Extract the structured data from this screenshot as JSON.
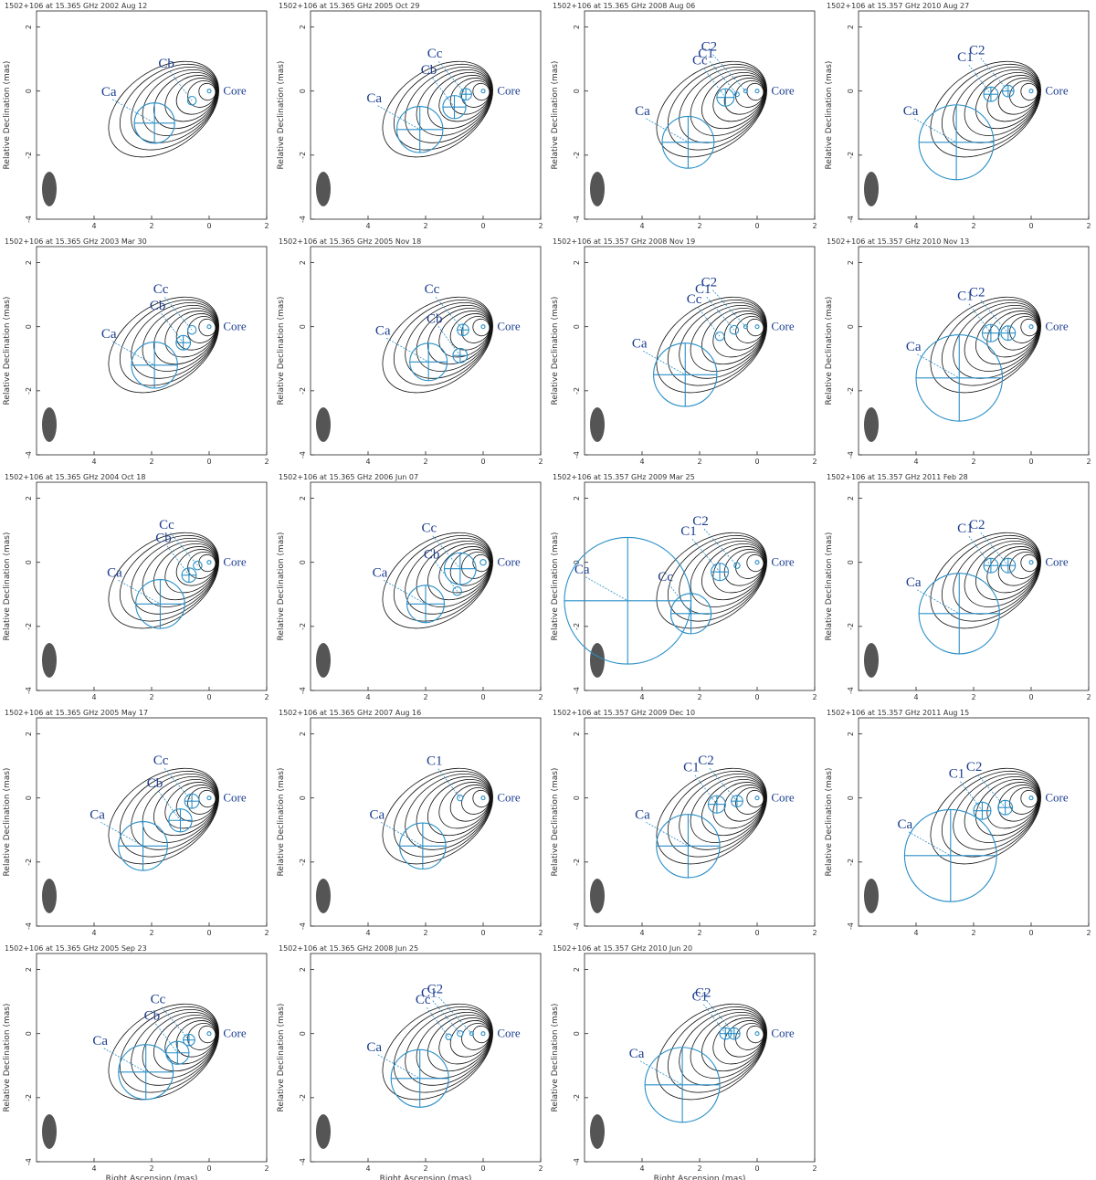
{
  "colors": {
    "contour": "#111111",
    "negative_contour": "#d62020",
    "model_component": "#2a8fc7",
    "component_label": "#1a3d8f",
    "beam": "#555555"
  },
  "figure": {
    "x_axis_label": "Right Ascension  (mas)",
    "y_axis_label": "Relative Declination  (mas)"
  },
  "chart_data": [
    {
      "type": "contour-map",
      "title": "1502+106 at 15.365 GHz 2002 Aug 12",
      "xlim": [
        6,
        -2
      ],
      "ylim": [
        -4,
        2.5
      ],
      "x_ticks": [
        "4",
        "2",
        "0",
        "2"
      ],
      "y_ticks": [
        "2",
        "0",
        "-2",
        "-4"
      ],
      "grid": false,
      "components": [
        {
          "name": "Ca",
          "x": 1.9,
          "y": -1.0,
          "size": 1.4
        },
        {
          "name": "Cb",
          "x": 0.6,
          "y": -0.3,
          "size": 0.3
        },
        {
          "name": "Core",
          "x": 0,
          "y": 0,
          "size": 0.1
        }
      ]
    },
    {
      "type": "contour-map",
      "title": "1502+106 at 15.365 GHz 2005 Oct 29",
      "xlim": [
        6,
        -2
      ],
      "ylim": [
        -4,
        2.5
      ],
      "x_ticks": [
        "4",
        "2",
        "0",
        "2"
      ],
      "y_ticks": [
        "2",
        "0",
        "-2",
        "-4"
      ],
      "grid": false,
      "components": [
        {
          "name": "Ca",
          "x": 2.2,
          "y": -1.2,
          "size": 1.6
        },
        {
          "name": "Cb",
          "x": 1.0,
          "y": -0.5,
          "size": 0.8
        },
        {
          "name": "Cc",
          "x": 0.6,
          "y": -0.1,
          "size": 0.4
        },
        {
          "name": "Core",
          "x": 0,
          "y": 0,
          "size": 0.1
        }
      ]
    },
    {
      "type": "contour-map",
      "title": "1502+106 at 15.365 GHz 2008 Aug 06",
      "xlim": [
        6,
        -2
      ],
      "ylim": [
        -4,
        2.5
      ],
      "x_ticks": [
        "4",
        "2",
        "0",
        "2"
      ],
      "y_ticks": [
        "2",
        "0",
        "-2",
        "-4"
      ],
      "grid": false,
      "components": [
        {
          "name": "Ca",
          "x": 2.4,
          "y": -1.6,
          "size": 1.8
        },
        {
          "name": "Cc",
          "x": 1.1,
          "y": -0.2,
          "size": 0.6
        },
        {
          "name": "C1",
          "x": 0.7,
          "y": -0.1,
          "size": 0.15
        },
        {
          "name": "C2",
          "x": 0.4,
          "y": 0.0,
          "size": 0.1
        },
        {
          "name": "Core",
          "x": 0,
          "y": 0,
          "size": 0.1
        }
      ]
    },
    {
      "type": "contour-map",
      "title": "1502+106 at 15.357 GHz 2010 Aug 27",
      "xlim": [
        6,
        -2
      ],
      "ylim": [
        -4,
        2.5
      ],
      "x_ticks": [
        "4",
        "2",
        "0",
        "2"
      ],
      "y_ticks": [
        "2",
        "0",
        "-2",
        "-4"
      ],
      "grid": false,
      "components": [
        {
          "name": "Ca",
          "x": 2.6,
          "y": -1.6,
          "size": 2.6
        },
        {
          "name": "C1",
          "x": 1.4,
          "y": -0.1,
          "size": 0.5
        },
        {
          "name": "C2",
          "x": 0.8,
          "y": 0.0,
          "size": 0.4
        },
        {
          "name": "Core",
          "x": 0,
          "y": 0,
          "size": 0.1
        }
      ]
    },
    {
      "type": "contour-map",
      "title": "1502+106 at 15.365 GHz 2003 Mar 30",
      "xlim": [
        6,
        -2
      ],
      "ylim": [
        -4,
        2.5
      ],
      "x_ticks": [
        "4",
        "2",
        "0",
        "2"
      ],
      "y_ticks": [
        "2",
        "0",
        "-2",
        "-4"
      ],
      "grid": false,
      "components": [
        {
          "name": "Ca",
          "x": 1.9,
          "y": -1.2,
          "size": 1.6
        },
        {
          "name": "Cb",
          "x": 0.9,
          "y": -0.5,
          "size": 0.5
        },
        {
          "name": "Cc",
          "x": 0.6,
          "y": -0.1,
          "size": 0.3
        },
        {
          "name": "Core",
          "x": 0,
          "y": 0,
          "size": 0.1
        }
      ]
    },
    {
      "type": "contour-map",
      "title": "1502+106 at 15.365 GHz 2005 Nov 18",
      "xlim": [
        6,
        -2
      ],
      "ylim": [
        -4,
        2.5
      ],
      "x_ticks": [
        "4",
        "2",
        "0",
        "2"
      ],
      "y_ticks": [
        "2",
        "0",
        "-2",
        "-4"
      ],
      "grid": false,
      "components": [
        {
          "name": "Ca",
          "x": 1.9,
          "y": -1.1,
          "size": 1.3
        },
        {
          "name": "Cb",
          "x": 0.8,
          "y": -0.9,
          "size": 0.5
        },
        {
          "name": "Cc",
          "x": 0.7,
          "y": -0.1,
          "size": 0.4
        },
        {
          "name": "Core",
          "x": 0,
          "y": 0,
          "size": 0.1
        }
      ]
    },
    {
      "type": "contour-map",
      "title": "1502+106 at 15.357 GHz 2008 Nov 19",
      "xlim": [
        6,
        -2
      ],
      "ylim": [
        -4,
        2.5
      ],
      "x_ticks": [
        "4",
        "2",
        "0",
        "2"
      ],
      "y_ticks": [
        "2",
        "0",
        "-2",
        "-4"
      ],
      "grid": false,
      "components": [
        {
          "name": "Ca",
          "x": 2.5,
          "y": -1.5,
          "size": 2.2
        },
        {
          "name": "Cc",
          "x": 1.3,
          "y": -0.3,
          "size": 0.3
        },
        {
          "name": "C1",
          "x": 0.8,
          "y": -0.1,
          "size": 0.3
        },
        {
          "name": "C2",
          "x": 0.4,
          "y": 0.0,
          "size": 0.1
        },
        {
          "name": "Core",
          "x": 0,
          "y": 0,
          "size": 0.1
        }
      ]
    },
    {
      "type": "contour-map",
      "title": "1502+106 at 15.357 GHz 2010 Nov 13",
      "xlim": [
        6,
        -2
      ],
      "ylim": [
        -4,
        2.5
      ],
      "x_ticks": [
        "4",
        "2",
        "0",
        "2"
      ],
      "y_ticks": [
        "2",
        "0",
        "-2",
        "-4"
      ],
      "grid": false,
      "components": [
        {
          "name": "Ca",
          "x": 2.5,
          "y": -1.6,
          "size": 3.0
        },
        {
          "name": "C1",
          "x": 1.4,
          "y": -0.2,
          "size": 0.6
        },
        {
          "name": "C2",
          "x": 0.8,
          "y": -0.2,
          "size": 0.5
        },
        {
          "name": "Core",
          "x": 0,
          "y": 0,
          "size": 0.1
        }
      ]
    },
    {
      "type": "contour-map",
      "title": "1502+106 at 15.365 GHz 2004 Oct 18",
      "xlim": [
        6,
        -2
      ],
      "ylim": [
        -4,
        2.5
      ],
      "x_ticks": [
        "4",
        "2",
        "0",
        "2"
      ],
      "y_ticks": [
        "2",
        "0",
        "-2",
        "-4"
      ],
      "grid": false,
      "components": [
        {
          "name": "Ca",
          "x": 1.7,
          "y": -1.3,
          "size": 1.7
        },
        {
          "name": "Cb",
          "x": 0.7,
          "y": -0.4,
          "size": 0.5
        },
        {
          "name": "Cc",
          "x": 0.4,
          "y": -0.1,
          "size": 0.3
        },
        {
          "name": "Core",
          "x": 0,
          "y": 0,
          "size": 0.1
        }
      ]
    },
    {
      "type": "contour-map",
      "title": "1502+106 at 15.365 GHz 2006 Jun 07",
      "xlim": [
        6,
        -2
      ],
      "ylim": [
        -4,
        2.5
      ],
      "x_ticks": [
        "4",
        "2",
        "0",
        "2"
      ],
      "y_ticks": [
        "2",
        "0",
        "-2",
        "-4"
      ],
      "grid": false,
      "components": [
        {
          "name": "Ca",
          "x": 2.0,
          "y": -1.3,
          "size": 1.3
        },
        {
          "name": "Cb",
          "x": 0.9,
          "y": -0.9,
          "size": 0.3
        },
        {
          "name": "Cc",
          "x": 0.8,
          "y": -0.2,
          "size": 1.1
        },
        {
          "name": "Core",
          "x": 0,
          "y": 0,
          "size": 0.2
        }
      ]
    },
    {
      "type": "contour-map",
      "title": "1502+106 at 15.357 GHz 2009 Mar 25",
      "xlim": [
        6,
        -2
      ],
      "ylim": [
        -4,
        2.5
      ],
      "x_ticks": [
        "4",
        "2",
        "0",
        "2"
      ],
      "y_ticks": [
        "2",
        "0",
        "-2",
        "-4"
      ],
      "grid": false,
      "components": [
        {
          "name": "Ca",
          "x": 4.5,
          "y": -1.2,
          "size": 4.4
        },
        {
          "name": "Cc",
          "x": 2.3,
          "y": -1.6,
          "size": 1.4
        },
        {
          "name": "C1",
          "x": 1.3,
          "y": -0.3,
          "size": 0.6
        },
        {
          "name": "C2",
          "x": 0.7,
          "y": -0.1,
          "size": 0.2
        },
        {
          "name": "Core",
          "x": 0,
          "y": 0,
          "size": 0.1
        }
      ]
    },
    {
      "type": "contour-map",
      "title": "1502+106 at 15.357 GHz 2011 Feb 28",
      "xlim": [
        6,
        -2
      ],
      "ylim": [
        -4,
        2.5
      ],
      "x_ticks": [
        "4",
        "2",
        "0",
        "2"
      ],
      "y_ticks": [
        "2",
        "0",
        "-2",
        "-4"
      ],
      "grid": false,
      "components": [
        {
          "name": "Ca",
          "x": 2.5,
          "y": -1.6,
          "size": 2.8
        },
        {
          "name": "C1",
          "x": 1.4,
          "y": -0.1,
          "size": 0.5
        },
        {
          "name": "C2",
          "x": 0.8,
          "y": -0.1,
          "size": 0.5
        },
        {
          "name": "Core",
          "x": 0,
          "y": 0,
          "size": 0.1
        }
      ]
    },
    {
      "type": "contour-map",
      "title": "1502+106 at 15.365 GHz 2005 May 17",
      "xlim": [
        6,
        -2
      ],
      "ylim": [
        -4,
        2.5
      ],
      "x_ticks": [
        "4",
        "2",
        "0",
        "2"
      ],
      "y_ticks": [
        "2",
        "0",
        "-2",
        "-4"
      ],
      "grid": false,
      "components": [
        {
          "name": "Ca",
          "x": 2.3,
          "y": -1.5,
          "size": 1.7
        },
        {
          "name": "Cb",
          "x": 1.0,
          "y": -0.7,
          "size": 0.8
        },
        {
          "name": "Cc",
          "x": 0.6,
          "y": -0.1,
          "size": 0.5
        },
        {
          "name": "Core",
          "x": 0,
          "y": 0,
          "size": 0.1
        }
      ]
    },
    {
      "type": "contour-map",
      "title": "1502+106 at 15.365 GHz 2007 Aug 16",
      "xlim": [
        6,
        -2
      ],
      "ylim": [
        -4,
        2.5
      ],
      "x_ticks": [
        "4",
        "2",
        "0",
        "2"
      ],
      "y_ticks": [
        "2",
        "0",
        "-2",
        "-4"
      ],
      "grid": false,
      "components": [
        {
          "name": "Ca",
          "x": 2.1,
          "y": -1.5,
          "size": 1.6
        },
        {
          "name": "C1",
          "x": 0.8,
          "y": 0.0,
          "size": 0.2
        },
        {
          "name": "Core",
          "x": 0,
          "y": 0,
          "size": 0.1
        }
      ]
    },
    {
      "type": "contour-map",
      "title": "1502+106 at 15.357 GHz 2009 Dec 10",
      "xlim": [
        6,
        -2
      ],
      "ylim": [
        -4,
        2.5
      ],
      "x_ticks": [
        "4",
        "2",
        "0",
        "2"
      ],
      "y_ticks": [
        "2",
        "0",
        "-2",
        "-4"
      ],
      "grid": false,
      "components": [
        {
          "name": "Ca",
          "x": 2.4,
          "y": -1.5,
          "size": 2.2
        },
        {
          "name": "C1",
          "x": 1.4,
          "y": -0.2,
          "size": 0.6
        },
        {
          "name": "C2",
          "x": 0.7,
          "y": -0.1,
          "size": 0.4
        },
        {
          "name": "Core",
          "x": 0,
          "y": 0,
          "size": 0.1
        }
      ]
    },
    {
      "type": "contour-map",
      "title": "1502+106 at 15.357 GHz 2011 Aug 15",
      "xlim": [
        6,
        -2
      ],
      "ylim": [
        -4,
        2.5
      ],
      "x_ticks": [
        "4",
        "2",
        "0",
        "2"
      ],
      "y_ticks": [
        "2",
        "0",
        "-2",
        "-4"
      ],
      "grid": false,
      "components": [
        {
          "name": "Ca",
          "x": 2.8,
          "y": -1.8,
          "size": 3.2
        },
        {
          "name": "C1",
          "x": 1.7,
          "y": -0.4,
          "size": 0.6
        },
        {
          "name": "C2",
          "x": 0.9,
          "y": -0.3,
          "size": 0.5
        },
        {
          "name": "Core",
          "x": 0,
          "y": 0,
          "size": 0.1
        }
      ]
    },
    {
      "type": "contour-map",
      "title": "1502+106 at 15.365 GHz 2005 Sep 23",
      "xlim": [
        6,
        -2
      ],
      "ylim": [
        -4,
        2.5
      ],
      "x_ticks": [
        "4",
        "2",
        "0",
        "2"
      ],
      "y_ticks": [
        "2",
        "0",
        "-2",
        "-4"
      ],
      "grid": false,
      "components": [
        {
          "name": "Ca",
          "x": 2.2,
          "y": -1.2,
          "size": 1.9
        },
        {
          "name": "Cb",
          "x": 1.1,
          "y": -0.6,
          "size": 0.8
        },
        {
          "name": "Cc",
          "x": 0.7,
          "y": -0.2,
          "size": 0.4
        },
        {
          "name": "Core",
          "x": 0,
          "y": 0,
          "size": 0.1
        }
      ]
    },
    {
      "type": "contour-map",
      "title": "1502+106 at 15.365 GHz 2008 Jun 25",
      "xlim": [
        6,
        -2
      ],
      "ylim": [
        -4,
        2.5
      ],
      "x_ticks": [
        "4",
        "2",
        "0",
        "2"
      ],
      "y_ticks": [
        "2",
        "0",
        "-2",
        "-4"
      ],
      "grid": false,
      "components": [
        {
          "name": "Ca",
          "x": 2.2,
          "y": -1.4,
          "size": 2.0
        },
        {
          "name": "Cc",
          "x": 1.2,
          "y": -0.1,
          "size": 0.2
        },
        {
          "name": "C1",
          "x": 0.8,
          "y": 0.0,
          "size": 0.2
        },
        {
          "name": "C2",
          "x": 0.4,
          "y": 0.0,
          "size": 0.1
        },
        {
          "name": "Core",
          "x": 0,
          "y": 0,
          "size": 0.1
        }
      ]
    },
    {
      "type": "contour-map",
      "title": "1502+106 at 15.357 GHz 2010 Jun 20",
      "xlim": [
        6,
        -2
      ],
      "ylim": [
        -4,
        2.5
      ],
      "x_ticks": [
        "4",
        "2",
        "0",
        "2"
      ],
      "y_ticks": [
        "2",
        "0",
        "-2",
        "-4"
      ],
      "grid": false,
      "components": [
        {
          "name": "Ca",
          "x": 2.6,
          "y": -1.6,
          "size": 2.6
        },
        {
          "name": "C1",
          "x": 1.1,
          "y": 0.0,
          "size": 0.4
        },
        {
          "name": "C2",
          "x": 0.8,
          "y": 0.0,
          "size": 0.4
        },
        {
          "name": "Core",
          "x": 0,
          "y": 0,
          "size": 0.1
        }
      ]
    }
  ]
}
